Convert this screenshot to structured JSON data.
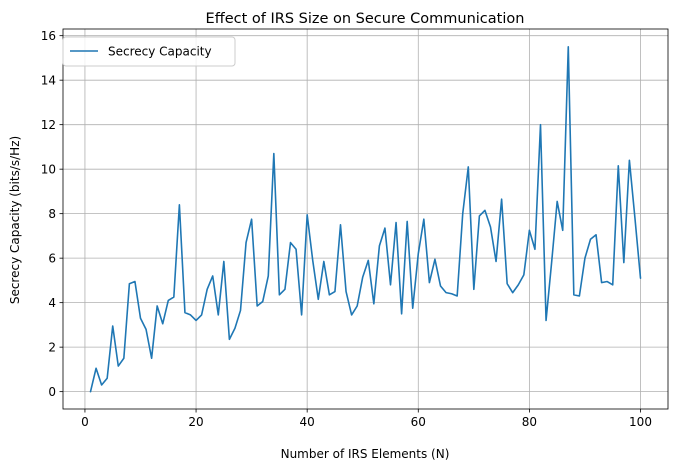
{
  "chart_data": {
    "type": "line",
    "title": "Effect of IRS Size on Secure Communication",
    "xlabel": "Number of IRS Elements (N)",
    "ylabel": "Secrecy Capacity (bits/s/Hz)",
    "xlim": [
      -3.95,
      104.95
    ],
    "ylim": [
      -0.78,
      16.3
    ],
    "xticks": [
      0,
      20,
      40,
      60,
      80,
      100
    ],
    "yticks": [
      0,
      2,
      4,
      6,
      8,
      10,
      12,
      14,
      16
    ],
    "grid": true,
    "legend_position": "top-left",
    "series": [
      {
        "name": "Secrecy Capacity",
        "color": "#1f77b4",
        "x": [
          1,
          2,
          3,
          4,
          5,
          6,
          7,
          8,
          9,
          10,
          11,
          12,
          13,
          14,
          15,
          16,
          17,
          18,
          19,
          20,
          21,
          22,
          23,
          24,
          25,
          26,
          27,
          28,
          29,
          30,
          31,
          32,
          33,
          34,
          35,
          36,
          37,
          38,
          39,
          40,
          41,
          42,
          43,
          44,
          45,
          46,
          47,
          48,
          49,
          50,
          51,
          52,
          53,
          54,
          55,
          56,
          57,
          58,
          59,
          60,
          61,
          62,
          63,
          64,
          65,
          66,
          67,
          68,
          69,
          70,
          71,
          72,
          73,
          74,
          75,
          76,
          77,
          78,
          79,
          80,
          81,
          82,
          83,
          84,
          85,
          86,
          87,
          88,
          89,
          90,
          91,
          92,
          93,
          94,
          95,
          96,
          97,
          98,
          99,
          100
        ],
        "values": [
          0.0,
          1.05,
          0.3,
          0.6,
          2.95,
          1.15,
          1.5,
          4.85,
          4.95,
          3.3,
          2.8,
          1.5,
          3.85,
          3.05,
          4.1,
          4.25,
          8.4,
          3.55,
          3.45,
          3.2,
          3.45,
          4.6,
          5.2,
          3.45,
          5.85,
          2.35,
          2.85,
          3.65,
          6.7,
          7.75,
          3.85,
          4.05,
          5.2,
          10.7,
          4.35,
          4.6,
          6.7,
          6.4,
          3.45,
          7.95,
          5.9,
          4.15,
          5.85,
          4.35,
          4.5,
          7.5,
          4.5,
          3.45,
          3.85,
          5.15,
          5.9,
          3.95,
          6.55,
          7.35,
          4.8,
          7.6,
          3.5,
          7.65,
          3.75,
          6.2,
          7.75,
          4.9,
          5.95,
          4.75,
          4.45,
          4.4,
          4.3,
          8.0,
          10.1,
          4.6,
          7.9,
          8.15,
          7.4,
          5.85,
          8.65,
          4.85,
          4.45,
          4.8,
          5.25,
          7.25,
          6.4,
          12.0,
          3.2,
          5.8,
          8.55,
          7.25,
          15.5,
          4.35,
          4.3,
          6.0,
          6.85,
          7.05,
          4.9,
          4.95,
          4.8,
          10.15,
          5.8,
          10.4,
          7.8,
          5.1
        ]
      }
    ]
  }
}
